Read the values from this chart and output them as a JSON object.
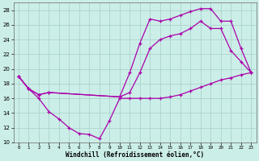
{
  "xlabel": "Windchill (Refroidissement éolien,°C)",
  "bg_color": "#cceee8",
  "grid_color": "#aad4cc",
  "line_color": "#aa00aa",
  "xlim": [
    -0.5,
    23.5
  ],
  "ylim": [
    10,
    29
  ],
  "yticks": [
    10,
    12,
    14,
    16,
    18,
    20,
    22,
    24,
    26,
    28
  ],
  "xticks": [
    0,
    1,
    2,
    3,
    4,
    5,
    6,
    7,
    8,
    9,
    10,
    11,
    12,
    13,
    14,
    15,
    16,
    17,
    18,
    19,
    20,
    21,
    22,
    23
  ],
  "series1_x": [
    0,
    1,
    2,
    3,
    4,
    5,
    6,
    7,
    8,
    9,
    10,
    11,
    12,
    13,
    14,
    15,
    16,
    17,
    18,
    19,
    20,
    21,
    22,
    23
  ],
  "series1_y": [
    19.0,
    17.3,
    16.0,
    14.2,
    13.2,
    12.0,
    11.2,
    11.1,
    10.5,
    13.0,
    16.0,
    16.0,
    16.0,
    16.0,
    16.0,
    16.2,
    16.5,
    17.0,
    17.5,
    18.0,
    18.5,
    18.8,
    19.2,
    19.5
  ],
  "series2_x": [
    0,
    1,
    2,
    3,
    10,
    11,
    12,
    13,
    14,
    15,
    16,
    17,
    18,
    19,
    20,
    21,
    22,
    23
  ],
  "series2_y": [
    19.0,
    17.3,
    16.5,
    16.8,
    16.2,
    19.5,
    23.5,
    26.8,
    26.5,
    26.8,
    27.3,
    27.8,
    28.2,
    28.2,
    26.5,
    26.5,
    22.8,
    19.5
  ],
  "series3_x": [
    0,
    1,
    2,
    3,
    10,
    11,
    12,
    13,
    14,
    15,
    16,
    17,
    18,
    19,
    20,
    21,
    22,
    23
  ],
  "series3_y": [
    19.0,
    17.3,
    16.5,
    16.8,
    16.2,
    16.8,
    19.5,
    22.8,
    24.0,
    24.5,
    24.8,
    25.5,
    26.5,
    25.5,
    25.5,
    22.5,
    21.0,
    19.5
  ]
}
